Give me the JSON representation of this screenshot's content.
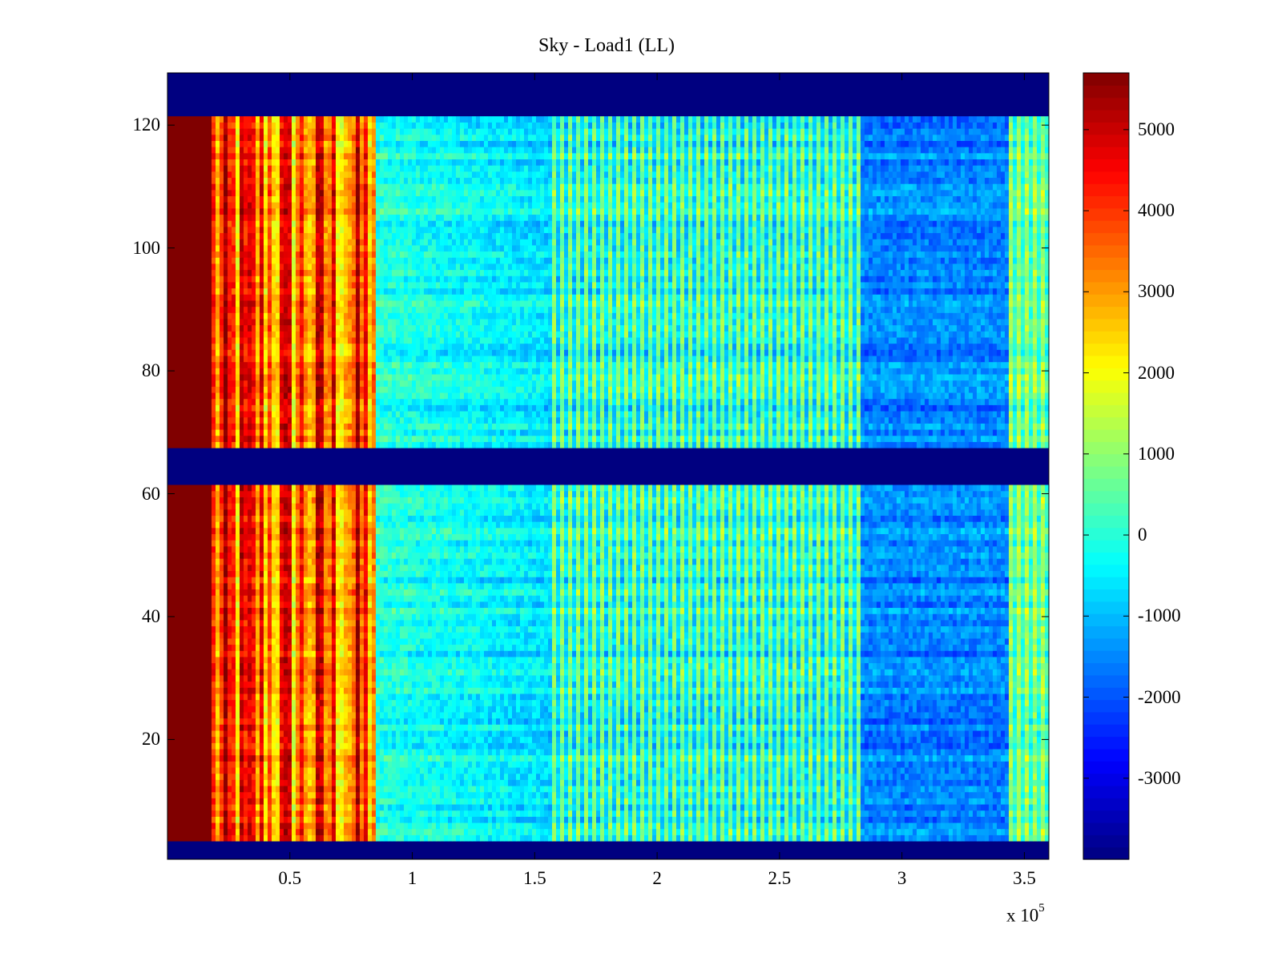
{
  "chart_data": {
    "type": "heatmap",
    "title": "Sky - Load1 (LL)",
    "xlabel": "",
    "ylabel": "",
    "x_exponent_label": "x 10",
    "x_exponent_power": "5",
    "xlim": [
      0,
      3.6
    ],
    "ylim": [
      0.5,
      128.5
    ],
    "x_ticks": [
      0.5,
      1,
      1.5,
      2,
      2.5,
      3,
      3.5
    ],
    "x_tick_labels": [
      "0.5",
      "1",
      "1.5",
      "2",
      "2.5",
      "3",
      "3.5"
    ],
    "y_ticks": [
      20,
      40,
      60,
      80,
      100,
      120
    ],
    "y_tick_labels": [
      "20",
      "40",
      "60",
      "80",
      "100",
      "120"
    ],
    "colorbar": {
      "colormap": "jet",
      "clim": [
        -4000,
        5700
      ],
      "ticks": [
        5000,
        4000,
        3000,
        2000,
        1000,
        0,
        -1000,
        -2000,
        -3000
      ],
      "tick_labels": [
        "5000",
        "4000",
        "3000",
        "2000",
        "1000",
        "0",
        "-1000",
        "-2000",
        "-3000"
      ]
    },
    "row_bands": [
      {
        "rows": [
          1,
          3
        ],
        "description_value": -4000
      },
      {
        "rows": [
          62,
          67
        ],
        "description_value": -4000
      },
      {
        "rows": [
          122,
          128
        ],
        "description_value": -4000
      }
    ],
    "column_segments": [
      {
        "x_range": [
          0.0,
          0.18
        ],
        "approx_value": 5700
      },
      {
        "x_range": [
          0.18,
          0.85
        ],
        "approx_value": 3500
      },
      {
        "x_range": [
          0.85,
          1.55
        ],
        "approx_value": 0
      },
      {
        "x_range": [
          1.55,
          2.83
        ],
        "approx_value": 0
      },
      {
        "x_range": [
          2.83,
          3.44
        ],
        "approx_value": -1500
      },
      {
        "x_range": [
          3.44,
          3.6
        ],
        "approx_value": 500
      }
    ]
  }
}
